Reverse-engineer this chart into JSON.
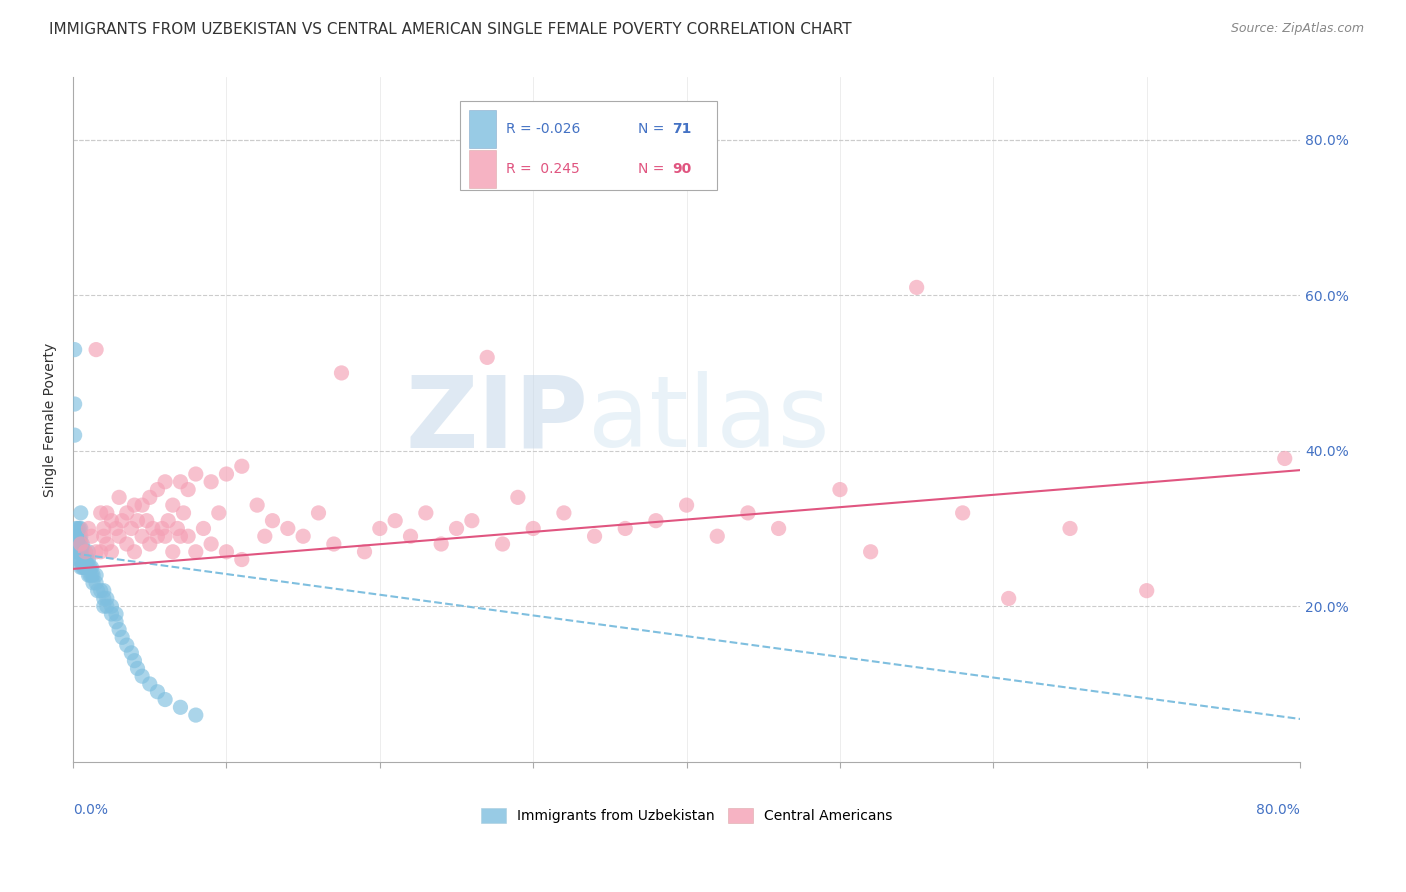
{
  "title": "IMMIGRANTS FROM UZBEKISTAN VS CENTRAL AMERICAN SINGLE FEMALE POVERTY CORRELATION CHART",
  "source": "Source: ZipAtlas.com",
  "ylabel": "Single Female Poverty",
  "xlim": [
    0.0,
    0.8
  ],
  "ylim": [
    0.0,
    0.88
  ],
  "color_uzbek": "#7fbfdf",
  "color_central": "#f4a0b5",
  "color_line_uzbek": "#7fbfdf",
  "color_line_central": "#e05580",
  "background_color": "#ffffff",
  "grid_color": "#cccccc",
  "title_fontsize": 11,
  "axis_label_fontsize": 10,
  "tick_label_fontsize": 10,
  "legend_fontsize": 11,
  "uzbek_x": [
    0.001,
    0.001,
    0.001,
    0.002,
    0.002,
    0.002,
    0.002,
    0.003,
    0.003,
    0.003,
    0.003,
    0.003,
    0.003,
    0.004,
    0.004,
    0.004,
    0.004,
    0.004,
    0.005,
    0.005,
    0.005,
    0.005,
    0.005,
    0.005,
    0.005,
    0.006,
    0.006,
    0.006,
    0.007,
    0.007,
    0.007,
    0.008,
    0.008,
    0.008,
    0.009,
    0.009,
    0.01,
    0.01,
    0.01,
    0.01,
    0.011,
    0.011,
    0.012,
    0.012,
    0.013,
    0.013,
    0.015,
    0.015,
    0.016,
    0.018,
    0.02,
    0.02,
    0.02,
    0.022,
    0.022,
    0.025,
    0.025,
    0.028,
    0.028,
    0.03,
    0.032,
    0.035,
    0.038,
    0.04,
    0.042,
    0.045,
    0.05,
    0.055,
    0.06,
    0.07,
    0.08
  ],
  "uzbek_y": [
    0.53,
    0.46,
    0.42,
    0.3,
    0.28,
    0.28,
    0.27,
    0.3,
    0.29,
    0.28,
    0.27,
    0.27,
    0.26,
    0.3,
    0.29,
    0.28,
    0.27,
    0.26,
    0.32,
    0.3,
    0.29,
    0.28,
    0.27,
    0.26,
    0.25,
    0.28,
    0.27,
    0.25,
    0.27,
    0.26,
    0.25,
    0.27,
    0.26,
    0.25,
    0.26,
    0.25,
    0.27,
    0.26,
    0.25,
    0.24,
    0.25,
    0.24,
    0.25,
    0.24,
    0.24,
    0.23,
    0.24,
    0.23,
    0.22,
    0.22,
    0.22,
    0.21,
    0.2,
    0.21,
    0.2,
    0.2,
    0.19,
    0.19,
    0.18,
    0.17,
    0.16,
    0.15,
    0.14,
    0.13,
    0.12,
    0.11,
    0.1,
    0.09,
    0.08,
    0.07,
    0.06
  ],
  "central_x": [
    0.005,
    0.008,
    0.01,
    0.012,
    0.015,
    0.015,
    0.018,
    0.018,
    0.02,
    0.02,
    0.022,
    0.022,
    0.025,
    0.025,
    0.028,
    0.03,
    0.03,
    0.032,
    0.035,
    0.035,
    0.038,
    0.04,
    0.04,
    0.042,
    0.045,
    0.045,
    0.048,
    0.05,
    0.05,
    0.052,
    0.055,
    0.055,
    0.058,
    0.06,
    0.06,
    0.062,
    0.065,
    0.065,
    0.068,
    0.07,
    0.07,
    0.072,
    0.075,
    0.075,
    0.08,
    0.08,
    0.085,
    0.09,
    0.09,
    0.095,
    0.1,
    0.1,
    0.11,
    0.11,
    0.12,
    0.125,
    0.13,
    0.14,
    0.15,
    0.16,
    0.17,
    0.175,
    0.19,
    0.2,
    0.21,
    0.22,
    0.23,
    0.24,
    0.25,
    0.26,
    0.27,
    0.28,
    0.29,
    0.3,
    0.32,
    0.34,
    0.36,
    0.38,
    0.4,
    0.42,
    0.44,
    0.46,
    0.5,
    0.52,
    0.55,
    0.58,
    0.61,
    0.65,
    0.7,
    0.79
  ],
  "central_y": [
    0.28,
    0.27,
    0.3,
    0.29,
    0.53,
    0.27,
    0.32,
    0.27,
    0.3,
    0.29,
    0.32,
    0.28,
    0.31,
    0.27,
    0.3,
    0.34,
    0.29,
    0.31,
    0.32,
    0.28,
    0.3,
    0.33,
    0.27,
    0.31,
    0.33,
    0.29,
    0.31,
    0.34,
    0.28,
    0.3,
    0.35,
    0.29,
    0.3,
    0.36,
    0.29,
    0.31,
    0.33,
    0.27,
    0.3,
    0.36,
    0.29,
    0.32,
    0.35,
    0.29,
    0.37,
    0.27,
    0.3,
    0.36,
    0.28,
    0.32,
    0.37,
    0.27,
    0.38,
    0.26,
    0.33,
    0.29,
    0.31,
    0.3,
    0.29,
    0.32,
    0.28,
    0.5,
    0.27,
    0.3,
    0.31,
    0.29,
    0.32,
    0.28,
    0.3,
    0.31,
    0.52,
    0.28,
    0.34,
    0.3,
    0.32,
    0.29,
    0.3,
    0.31,
    0.33,
    0.29,
    0.32,
    0.3,
    0.35,
    0.27,
    0.61,
    0.32,
    0.21,
    0.3,
    0.22,
    0.39
  ],
  "watermark_zip": "ZIP",
  "watermark_atlas": "atlas"
}
